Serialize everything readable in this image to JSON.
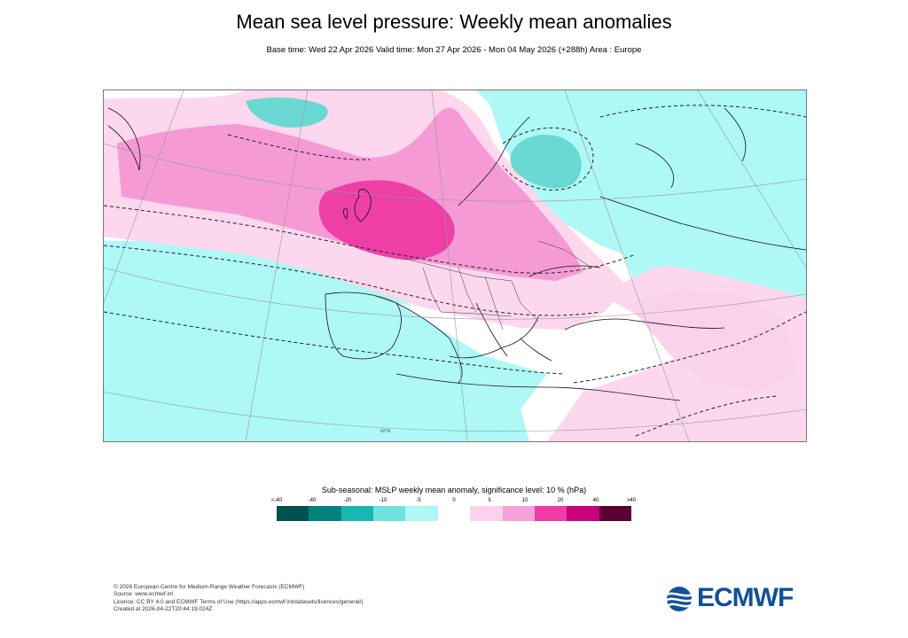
{
  "header": {
    "title": "Mean sea level pressure: Weekly mean anomalies",
    "subtitle": "Base time: Wed 22 Apr 2026 Valid time: Mon 27 Apr 2026 - Mon 04 May 2026 (+288h) Area : Europe"
  },
  "map": {
    "region": "Europe",
    "grid_label": "60°N",
    "features": [
      {
        "name": "uk-high-core",
        "anomaly_class": "20 to 40",
        "color": "#ee3fa6"
      },
      {
        "name": "north-atlantic-positive",
        "anomaly_class": "10 to 20",
        "color": "#f59ad4"
      },
      {
        "name": "mediterranean-positive",
        "anomaly_class": "5 to 10",
        "color": "#fbd6ee"
      },
      {
        "name": "atlantic-negative",
        "anomaly_class": "-10 to -5",
        "color": "#a8f6f4"
      },
      {
        "name": "russia-negative",
        "anomaly_class": "-10 to -5",
        "color": "#a8f6f4"
      },
      {
        "name": "barents-low",
        "anomaly_class": "-20 to -10",
        "color": "#6ad9d4"
      }
    ]
  },
  "legend": {
    "title": "Sub-seasonal: MSLP weekly mean anomaly, significance level: 10 % (hPa)",
    "ticks": [
      "<-40",
      "-40",
      "-20",
      "-10",
      "-5",
      "0",
      "5",
      "10",
      "20",
      "40",
      ">40"
    ],
    "colors": [
      "#00504d",
      "#00837f",
      "#18b7b2",
      "#6ee2dd",
      "#b0f8f5",
      "#ffffff",
      "#fbd1ec",
      "#f7a1da",
      "#f03ba6",
      "#c8007b",
      "#5b0034"
    ]
  },
  "footer": {
    "lines": [
      "© 2026 European Centre for Medium-Range Weather Forecasts (ECMWF)",
      "Source: www.ecmwf.int",
      "Licence: CC BY 4.0 and ECMWF Terms of Use (https://apps.ecmwf.int/datasets/licences/general/)",
      "Created at 2026-04-22T20:44:19.024Z"
    ]
  },
  "brand": {
    "logo_text": "ECMWF",
    "color": "#12509a"
  }
}
